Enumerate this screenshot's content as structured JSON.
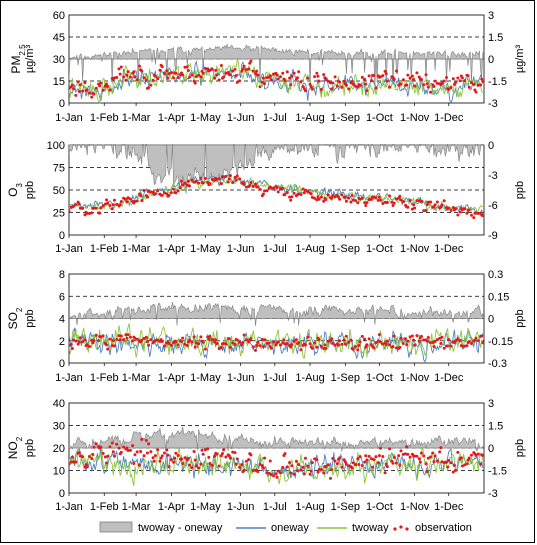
{
  "legend": {
    "diff": "twoway - oneway",
    "oneway": "oneway",
    "twoway": "twoway",
    "observation": "observation"
  },
  "colors": {
    "diff_fill": "#bfbfbf",
    "diff_stroke": "#7f7f7f",
    "oneway": "#4f81bd",
    "twoway": "#8cc63f",
    "observation": "#e31a1c"
  },
  "chart_data": [
    {
      "type": "line",
      "ylabel_main": "PM2.5",
      "ylabel_left_unit": "",
      "ylabel_right": "µg/m³",
      "ylim": [
        0,
        60
      ],
      "yticks": [
        0,
        15,
        30,
        45,
        60
      ],
      "y2lim": [
        -3,
        3
      ],
      "y2ticks": [
        -3,
        -1.5,
        0,
        1.5,
        3
      ],
      "x_categories": [
        "1-Jan",
        "1-Feb",
        "1-Mar",
        "1-Apr",
        "1-May",
        "1-Jun",
        "1-Jul",
        "1-Aug",
        "1-Sep",
        "1-Oct",
        "1-Nov",
        "1-Dec"
      ],
      "x_days": [
        0,
        31,
        59,
        90,
        120,
        151,
        181,
        212,
        243,
        273,
        304,
        334
      ],
      "grid": "dashed horizontal",
      "series": [
        {
          "name": "twoway - oneway",
          "axis": "right",
          "anchors": [
            [
              0,
              0.1
            ],
            [
              60,
              0.5
            ],
            [
              150,
              0.7
            ],
            [
              240,
              0.4
            ],
            [
              365,
              0.4
            ]
          ],
          "noise": 0.22,
          "seed": 11,
          "neg_prob": 0.1,
          "neg_min": -2.0
        },
        {
          "name": "oneway",
          "anchors": [
            [
              0,
              10
            ],
            [
              30,
              8
            ],
            [
              50,
              18
            ],
            [
              70,
              19
            ],
            [
              100,
              18
            ],
            [
              130,
              20
            ],
            [
              150,
              22
            ],
            [
              170,
              16
            ],
            [
              200,
              14
            ],
            [
              215,
              8
            ],
            [
              240,
              12
            ],
            [
              280,
              13
            ],
            [
              320,
              10
            ],
            [
              365,
              12
            ]
          ],
          "noise": 6,
          "seed": 21
        },
        {
          "name": "twoway",
          "anchors": [
            [
              0,
              10
            ],
            [
              30,
              8
            ],
            [
              50,
              19
            ],
            [
              70,
              20
            ],
            [
              100,
              19
            ],
            [
              130,
              21
            ],
            [
              150,
              23
            ],
            [
              170,
              16
            ],
            [
              200,
              14
            ],
            [
              215,
              8
            ],
            [
              240,
              12
            ],
            [
              280,
              13
            ],
            [
              320,
              10
            ],
            [
              365,
              12
            ]
          ],
          "noise": 6.5,
          "seed": 22
        },
        {
          "name": "observation",
          "anchors": [
            [
              0,
              12
            ],
            [
              30,
              10
            ],
            [
              50,
              20
            ],
            [
              80,
              20
            ],
            [
              120,
              21
            ],
            [
              150,
              22
            ],
            [
              180,
              17
            ],
            [
              210,
              14
            ],
            [
              240,
              14
            ],
            [
              280,
              15
            ],
            [
              320,
              13
            ],
            [
              365,
              14
            ]
          ],
          "noise": 6,
          "seed": 23
        }
      ]
    },
    {
      "type": "line",
      "ylabel_main": "O3",
      "ylabel_left_unit": "ppb",
      "ylabel_right": "ppb",
      "ylim": [
        0,
        100
      ],
      "yticks": [
        0,
        25,
        50,
        75,
        100
      ],
      "y2lim": [
        -9,
        0
      ],
      "y2ticks": [
        -9,
        -6,
        -3,
        0
      ],
      "x_categories": [
        "1-Jan",
        "1-Feb",
        "1-Mar",
        "1-Apr",
        "1-May",
        "1-Jun",
        "1-Jul",
        "1-Aug",
        "1-Sep",
        "1-Oct",
        "1-Nov",
        "1-Dec"
      ],
      "x_days": [
        0,
        31,
        59,
        90,
        120,
        151,
        181,
        212,
        243,
        273,
        304,
        334
      ],
      "grid": "dashed horizontal",
      "series": [
        {
          "name": "twoway - oneway",
          "axis": "right",
          "anchors": [
            [
              0,
              0.0
            ],
            [
              40,
              -0.2
            ],
            [
              60,
              -1.5
            ],
            [
              80,
              -3.0
            ],
            [
              110,
              -3.5
            ],
            [
              140,
              -2.5
            ],
            [
              170,
              -1.0
            ],
            [
              200,
              -0.5
            ],
            [
              240,
              -0.5
            ],
            [
              300,
              -0.3
            ],
            [
              365,
              -0.3
            ]
          ],
          "noise": 1.0,
          "seed": 12,
          "pos_prob": 0.08,
          "pos_max": 1.0
        },
        {
          "name": "oneway",
          "anchors": [
            [
              0,
              32
            ],
            [
              30,
              33
            ],
            [
              55,
              40
            ],
            [
              80,
              50
            ],
            [
              110,
              60
            ],
            [
              140,
              62
            ],
            [
              155,
              60
            ],
            [
              180,
              55
            ],
            [
              210,
              50
            ],
            [
              240,
              45
            ],
            [
              270,
              42
            ],
            [
              300,
              38
            ],
            [
              330,
              32
            ],
            [
              365,
              28
            ]
          ],
          "noise": 4.5,
          "seed": 31
        },
        {
          "name": "twoway",
          "anchors": [
            [
              0,
              31
            ],
            [
              30,
              32
            ],
            [
              55,
              38
            ],
            [
              80,
              47
            ],
            [
              110,
              57
            ],
            [
              140,
              60
            ],
            [
              155,
              58
            ],
            [
              180,
              54
            ],
            [
              210,
              49
            ],
            [
              240,
              44
            ],
            [
              270,
              41
            ],
            [
              300,
              37
            ],
            [
              330,
              31
            ],
            [
              365,
              28
            ]
          ],
          "noise": 5,
          "seed": 32
        },
        {
          "name": "observation",
          "anchors": [
            [
              0,
              30
            ],
            [
              30,
              32
            ],
            [
              55,
              40
            ],
            [
              80,
              48
            ],
            [
              110,
              58
            ],
            [
              140,
              60
            ],
            [
              155,
              55
            ],
            [
              180,
              50
            ],
            [
              210,
              45
            ],
            [
              240,
              40
            ],
            [
              270,
              38
            ],
            [
              300,
              35
            ],
            [
              330,
              30
            ],
            [
              365,
              26
            ]
          ],
          "noise": 6,
          "seed": 33
        }
      ]
    },
    {
      "type": "line",
      "ylabel_main": "SO2",
      "ylabel_left_unit": "ppb",
      "ylabel_right": "ppb",
      "ylim": [
        0,
        8
      ],
      "yticks": [
        0,
        2,
        4,
        6,
        8
      ],
      "y2lim": [
        -0.3,
        0.3
      ],
      "y2ticks": [
        -0.3,
        -0.15,
        0,
        0.15,
        0.3
      ],
      "x_categories": [
        "1-Jan",
        "1-Feb",
        "1-Mar",
        "1-Apr",
        "1-May",
        "1-Jun",
        "1-Jul",
        "1-Aug",
        "1-Sep",
        "1-Oct",
        "1-Nov",
        "1-Dec"
      ],
      "x_days": [
        0,
        31,
        59,
        90,
        120,
        151,
        181,
        212,
        243,
        273,
        304,
        334
      ],
      "grid": "dashed horizontal",
      "series": [
        {
          "name": "twoway - oneway",
          "axis": "right",
          "anchors": [
            [
              0,
              0.02
            ],
            [
              40,
              0.04
            ],
            [
              80,
              0.07
            ],
            [
              120,
              0.08
            ],
            [
              160,
              0.06
            ],
            [
              200,
              0.05
            ],
            [
              250,
              0.05
            ],
            [
              300,
              0.05
            ],
            [
              365,
              0.03
            ]
          ],
          "noise": 0.035,
          "seed": 13,
          "neg_prob": 0.05,
          "neg_min": -0.05
        },
        {
          "name": "oneway",
          "anchors": [
            [
              0,
              2.0
            ],
            [
              60,
              1.8
            ],
            [
              120,
              1.7
            ],
            [
              180,
              1.6
            ],
            [
              240,
              1.6
            ],
            [
              300,
              1.7
            ],
            [
              365,
              1.9
            ]
          ],
          "noise": 0.9,
          "seed": 41
        },
        {
          "name": "twoway",
          "anchors": [
            [
              0,
              2.1
            ],
            [
              60,
              1.9
            ],
            [
              120,
              1.8
            ],
            [
              180,
              1.7
            ],
            [
              240,
              1.7
            ],
            [
              300,
              1.8
            ],
            [
              365,
              2.0
            ]
          ],
          "noise": 1.1,
          "seed": 42
        },
        {
          "name": "observation",
          "anchors": [
            [
              0,
              2.0
            ],
            [
              60,
              2.0
            ],
            [
              120,
              1.8
            ],
            [
              180,
              1.7
            ],
            [
              240,
              1.8
            ],
            [
              300,
              2.0
            ],
            [
              365,
              2.0
            ]
          ],
          "noise": 0.55,
          "seed": 43
        }
      ]
    },
    {
      "type": "line",
      "ylabel_main": "NO2",
      "ylabel_left_unit": "ppb",
      "ylabel_right": "ppb",
      "ylim": [
        0,
        40
      ],
      "yticks": [
        0,
        10,
        20,
        30,
        40
      ],
      "y2lim": [
        -3,
        3
      ],
      "y2ticks": [
        -3,
        -1.5,
        0,
        1.5,
        3
      ],
      "x_categories": [
        "1-Jan",
        "1-Feb",
        "1-Mar",
        "1-Apr",
        "1-May",
        "1-Jun",
        "1-Jul",
        "1-Aug",
        "1-Sep",
        "1-Oct",
        "1-Nov",
        "1-Dec"
      ],
      "x_days": [
        0,
        31,
        59,
        90,
        120,
        151,
        181,
        212,
        243,
        273,
        304,
        334
      ],
      "grid": "dashed horizontal",
      "series": [
        {
          "name": "twoway - oneway",
          "axis": "right",
          "anchors": [
            [
              0,
              0.3
            ],
            [
              40,
              0.5
            ],
            [
              90,
              0.9
            ],
            [
              120,
              0.9
            ],
            [
              160,
              0.5
            ],
            [
              200,
              0.3
            ],
            [
              260,
              0.3
            ],
            [
              320,
              0.4
            ],
            [
              365,
              0.4
            ]
          ],
          "noise": 0.35,
          "seed": 14,
          "neg_prob": 0.04,
          "neg_min": -0.3
        },
        {
          "name": "oneway",
          "anchors": [
            [
              0,
              14
            ],
            [
              30,
              15
            ],
            [
              60,
              12
            ],
            [
              90,
              14
            ],
            [
              120,
              13
            ],
            [
              160,
              11
            ],
            [
              200,
              10
            ],
            [
              240,
              11
            ],
            [
              280,
              12
            ],
            [
              320,
              13
            ],
            [
              365,
              15
            ]
          ],
          "noise": 4.5,
          "seed": 51
        },
        {
          "name": "twoway",
          "anchors": [
            [
              0,
              14
            ],
            [
              30,
              15
            ],
            [
              60,
              12
            ],
            [
              90,
              14
            ],
            [
              120,
              13
            ],
            [
              160,
              11
            ],
            [
              200,
              10
            ],
            [
              240,
              11
            ],
            [
              280,
              12
            ],
            [
              320,
              13
            ],
            [
              365,
              15
            ]
          ],
          "noise": 5,
          "seed": 52
        },
        {
          "name": "observation",
          "anchors": [
            [
              0,
              18
            ],
            [
              30,
              19
            ],
            [
              60,
              17
            ],
            [
              90,
              16
            ],
            [
              120,
              15
            ],
            [
              160,
              13
            ],
            [
              200,
              12
            ],
            [
              240,
              13
            ],
            [
              280,
              14
            ],
            [
              320,
              16
            ],
            [
              365,
              17
            ]
          ],
          "noise": 5,
          "seed": 53
        }
      ]
    }
  ]
}
